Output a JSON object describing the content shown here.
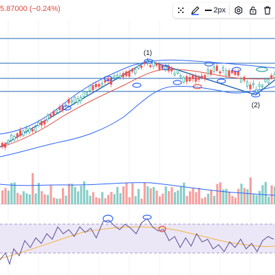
{
  "header": {
    "price_change_text": "5.87000 (−0.24%)",
    "price_color": "#e0463a"
  },
  "drawing_toolbar": {
    "items": [
      {
        "icon": "drag-handle-icon"
      },
      {
        "icon": "pencil-icon"
      },
      {
        "icon": "line-style-icon",
        "label": "2px"
      },
      {
        "icon": "settings-icon"
      },
      {
        "icon": "lock-icon"
      },
      {
        "icon": "trash-icon"
      }
    ]
  },
  "annotations": {
    "wave_label_1": "(1)",
    "wave_label_2": "(2)"
  },
  "colors": {
    "bollinger": "#2962ff",
    "trendline": "#1f63b5",
    "moving_average": "#e0463a",
    "candle_up": "#26a69a",
    "candle_down": "#ef5350",
    "volume_up": "#26a69a",
    "volume_down": "#ef5350",
    "rsi_line": "#5b4a96",
    "rsi_signal": "#f3b13a",
    "rsi_background": "#ebe7f7",
    "circle_marker": "#2962ff",
    "circle_marker_red": "#e0463a"
  }
}
